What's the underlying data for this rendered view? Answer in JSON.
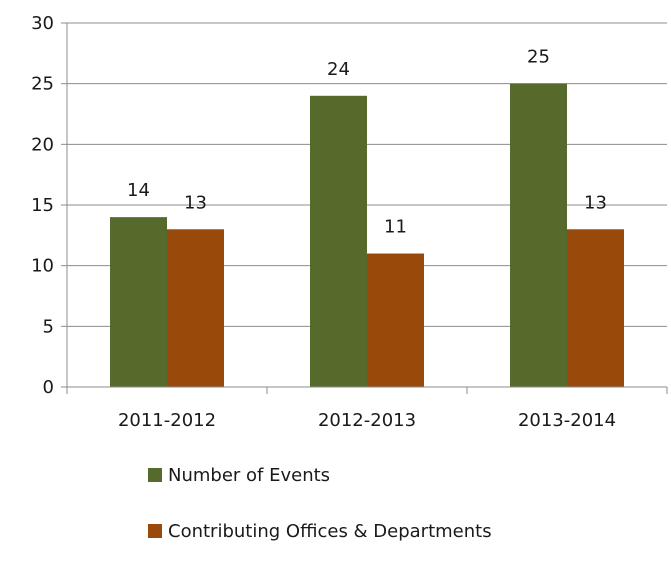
{
  "chart_data": {
    "type": "bar",
    "categories": [
      "2011-2012",
      "2012-2013",
      "2013-2014"
    ],
    "series": [
      {
        "name": "Number of Events",
        "values": [
          14,
          24,
          25
        ],
        "color": "#556a2b"
      },
      {
        "name": "Contributing Offices & Departments",
        "values": [
          13,
          11,
          13
        ],
        "color": "#994a0b"
      }
    ],
    "ylim": [
      0,
      30
    ],
    "yticks": [
      0,
      5,
      10,
      15,
      20,
      25,
      30
    ],
    "grid": true,
    "data_labels": true,
    "legend": "bottom",
    "title": "",
    "xlabel": "",
    "ylabel": ""
  }
}
